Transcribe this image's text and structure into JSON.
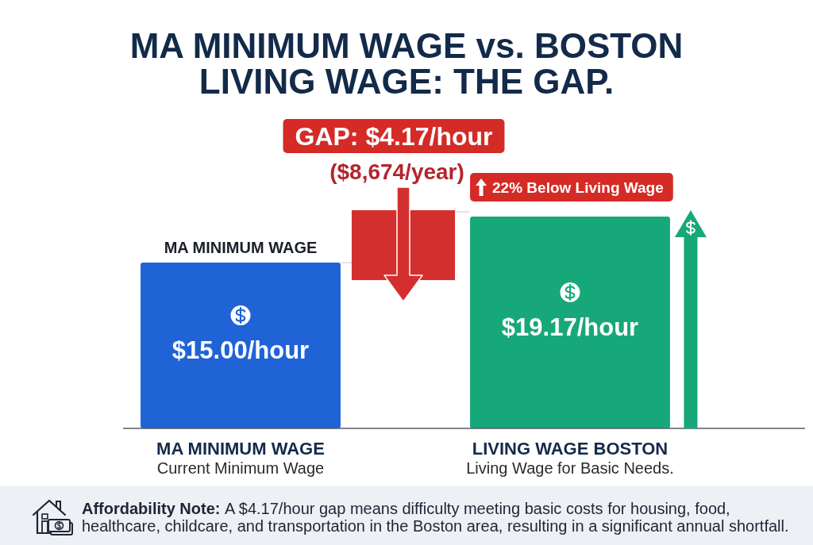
{
  "chart_data": {
    "type": "bar",
    "title": "MA MINIMUM WAGE vs. BOSTON LIVING WAGE: THE GAP.",
    "categories": [
      "MA MINIMUM WAGE",
      "LIVING WAGE BOSTON"
    ],
    "values": [
      15.0,
      19.17
    ],
    "colors": [
      "#1f63d6",
      "#17a879"
    ],
    "value_labels": [
      "$15.00/hour",
      "$19.17/hour"
    ],
    "annotations": [
      {
        "text": "MA MINIMUM WAGE",
        "x": "MA MINIMUM WAGE",
        "y": 15
      },
      "GAP: $4.17/hour",
      "($8,674/year)",
      "22% Below Living Wage",
      "Current Minimum Wage",
      "Living Wage for Basic Needs.",
      "Affordability Note: A $4.17/hour gap means difficulty meeting basic costs for housing, food, healthcare, childcare, and transportation in the Boston area, resulting in a significant annual shortfall."
    ]
  }
}
